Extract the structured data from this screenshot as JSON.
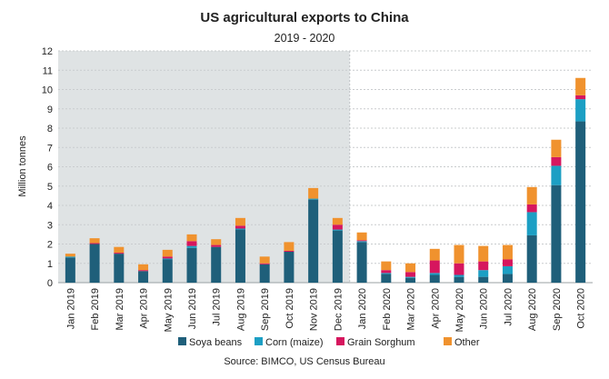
{
  "chart_data": {
    "type": "bar",
    "stacked": true,
    "title": "US agricultural exports to China",
    "subtitle": "2019 - 2020",
    "ylabel": "Million tonnes",
    "xlabel": "",
    "ylim": [
      0,
      12
    ],
    "yticks": [
      0,
      1,
      2,
      3,
      4,
      5,
      6,
      7,
      8,
      9,
      10,
      11,
      12
    ],
    "grid": true,
    "legend_position": "bottom",
    "source": "Source: BIMCO, US Census Bureau",
    "shaded_region": {
      "from": "Jan 2019",
      "to": "Dec 2019",
      "color": "#dfe3e4"
    },
    "categories": [
      "Jan 2019",
      "Feb 2019",
      "Mar 2019",
      "Apr 2019",
      "May 2019",
      "Jun 2019",
      "Jul 2019",
      "Aug 2019",
      "Sep 2019",
      "Oct 2019",
      "Nov 2019",
      "Dec 2019",
      "Jan 2020",
      "Feb 2020",
      "Mar 2020",
      "Apr 2020",
      "May 2020",
      "Jun 2020",
      "Jul 2020",
      "Aug 2020",
      "Sep 2020",
      "Oct 2020"
    ],
    "series": [
      {
        "name": "Soya beans",
        "color": "#1f5f7a",
        "values": [
          1.3,
          2.0,
          1.5,
          0.6,
          1.2,
          1.8,
          1.85,
          2.75,
          0.95,
          1.6,
          4.3,
          2.7,
          2.1,
          0.45,
          0.25,
          0.4,
          0.3,
          0.3,
          0.45,
          2.45,
          5.05,
          8.35
        ]
      },
      {
        "name": "Corn (maize)",
        "color": "#1c9fc4",
        "values": [
          0.05,
          0.0,
          0.0,
          0.0,
          0.05,
          0.1,
          0.0,
          0.05,
          0.0,
          0.0,
          0.05,
          0.05,
          0.05,
          0.05,
          0.05,
          0.1,
          0.1,
          0.35,
          0.4,
          1.2,
          1.0,
          1.15
        ]
      },
      {
        "name": "Grain Sorghum",
        "color": "#d6165e",
        "values": [
          0.0,
          0.05,
          0.05,
          0.05,
          0.1,
          0.25,
          0.1,
          0.15,
          0.05,
          0.05,
          0.0,
          0.25,
          0.05,
          0.15,
          0.25,
          0.65,
          0.6,
          0.45,
          0.35,
          0.4,
          0.45,
          0.2
        ]
      },
      {
        "name": "Other",
        "color": "#f0922e",
        "values": [
          0.15,
          0.25,
          0.3,
          0.3,
          0.35,
          0.35,
          0.3,
          0.4,
          0.35,
          0.45,
          0.55,
          0.35,
          0.4,
          0.45,
          0.45,
          0.6,
          0.95,
          0.8,
          0.75,
          0.9,
          0.9,
          0.9
        ]
      }
    ]
  }
}
